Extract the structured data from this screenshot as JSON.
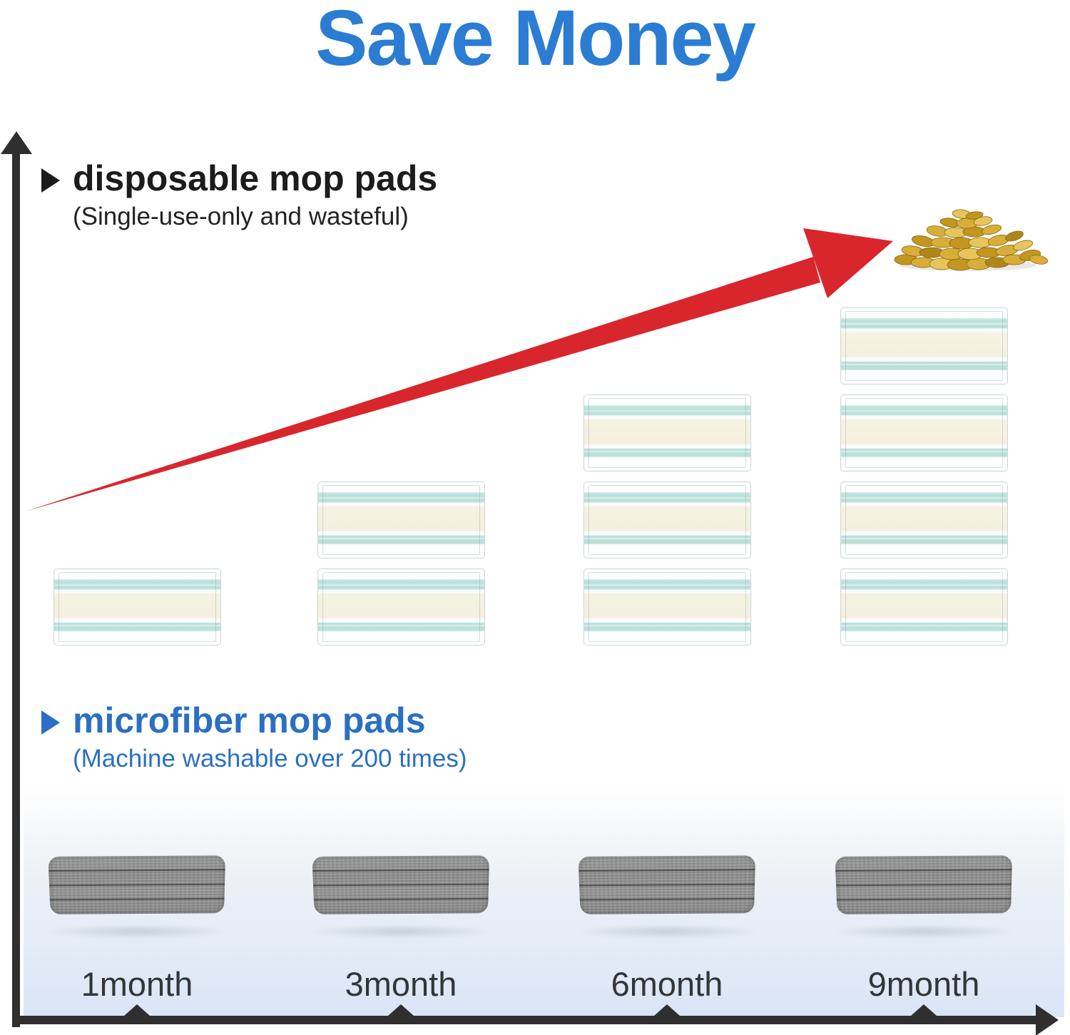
{
  "title": {
    "text": "Save Money"
  },
  "sections": {
    "disposable": {
      "label": "disposable mop pads",
      "subtitle": "(Single-use-only and wasteful)"
    },
    "microfiber": {
      "label": "microfiber mop pads",
      "subtitle": "(Machine washable over 200 times)"
    }
  },
  "axis": {
    "x_labels": [
      "1month",
      "3month",
      "6month",
      "9month"
    ]
  },
  "chart_data": {
    "type": "bar",
    "subtype": "pictogram-comparison",
    "title": "Save Money",
    "categories": [
      "1month",
      "3month",
      "6month",
      "9month"
    ],
    "series": [
      {
        "name": "disposable mop pads",
        "note": "(Single-use-only and wasteful)",
        "marker": "disposable-pad",
        "values": [
          1,
          2,
          3,
          4
        ]
      },
      {
        "name": "microfiber mop pads",
        "note": "(Machine washable over 200 times)",
        "marker": "microfiber-pad",
        "values": [
          1,
          1,
          1,
          1
        ]
      }
    ],
    "annotations": [
      "red rising arrow from axis origin toward a pile of gold coins (increasing cost of disposable pads)"
    ],
    "legend_position": "inline-left",
    "grid": false
  },
  "icons": {
    "bullet": "triangle-right-icon",
    "coins": "gold-coin-pile-image",
    "arrow": "red-rising-arrow"
  },
  "colors": {
    "title_blue": "#2b7cd3",
    "microfiber_blue": "#2a6fc4",
    "axis_dark": "#2f2f2f",
    "arrow_red": "#d8262c",
    "pad_teal": "#bfe3de",
    "pad_cream": "#f4f1e1",
    "microfiber_gray": "#949494",
    "panel_blue": "#d9e5f6"
  }
}
